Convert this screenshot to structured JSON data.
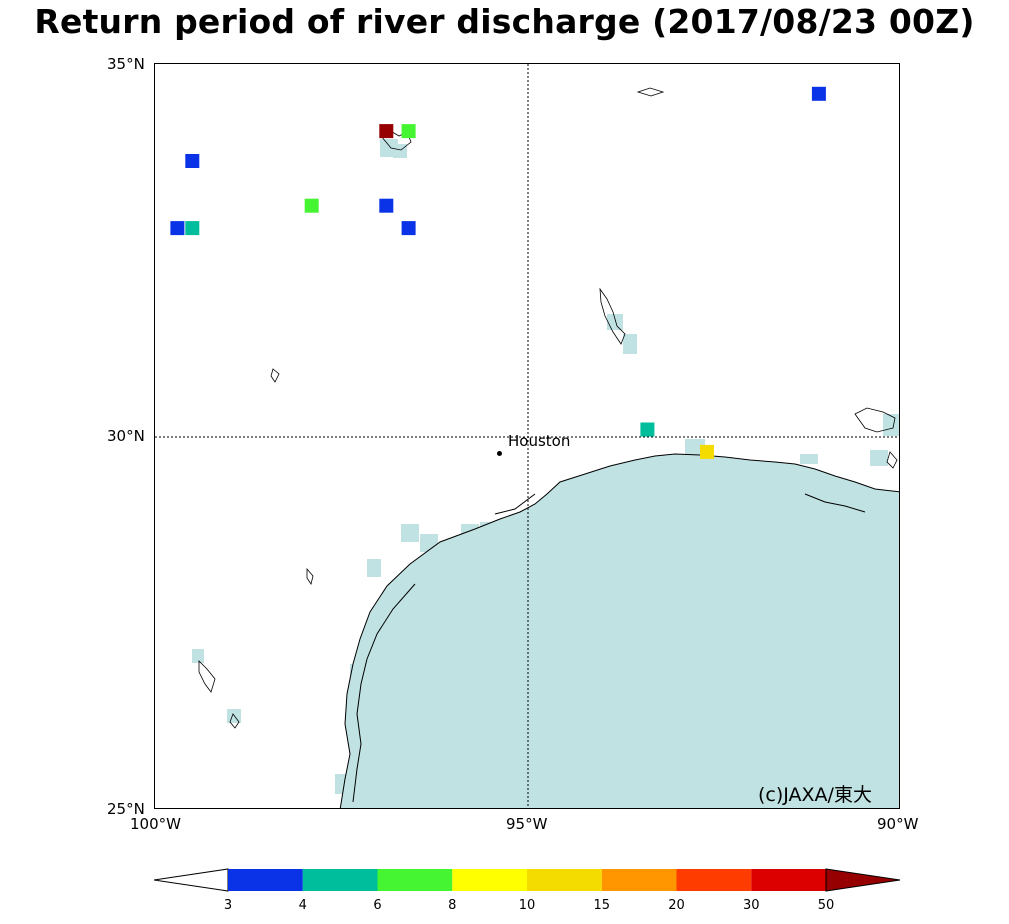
{
  "title": "Return period of river discharge  (2017/08/23 00Z)",
  "axes": {
    "lat_labels": [
      "35°N",
      "30°N",
      "25°N"
    ],
    "lon_labels": [
      "100°W",
      "95°W",
      "90°W"
    ]
  },
  "city": {
    "name": "Houston"
  },
  "copyright": "(c)JAXA/東大",
  "legend": {
    "boundaries": [
      "3",
      "4",
      "6",
      "8",
      "10",
      "15",
      "20",
      "30",
      "50"
    ],
    "colors": [
      "#0a32e6",
      "#00be9b",
      "#46f532",
      "#ffff00",
      "#f5dc00",
      "#ff9600",
      "#ff3c00",
      "#dc0000",
      "#960000"
    ]
  },
  "colors": {
    "sea": "#c1e2e3",
    "gridline": "#000000"
  },
  "chart_data": {
    "type": "heatmap",
    "title": "Return period of river discharge  (2017/08/23 00Z)",
    "xlim": [
      -100,
      -90
    ],
    "ylim": [
      25,
      35
    ],
    "xticks": [
      "100°W",
      "95°W",
      "90°W"
    ],
    "yticks": [
      "25°N",
      "30°N",
      "35°N"
    ],
    "cell_size_deg": 0.25,
    "cells": [
      {
        "lon": -99.5,
        "lat": 33.7,
        "class": "3-4"
      },
      {
        "lon": -99.7,
        "lat": 32.8,
        "class": "3-4"
      },
      {
        "lon": -99.5,
        "lat": 32.8,
        "class": "4-6"
      },
      {
        "lon": -97.9,
        "lat": 33.1,
        "class": "6-8"
      },
      {
        "lon": -96.9,
        "lat": 34.1,
        "class": ">50"
      },
      {
        "lon": -96.6,
        "lat": 34.1,
        "class": "6-8"
      },
      {
        "lon": -96.9,
        "lat": 33.1,
        "class": "3-4"
      },
      {
        "lon": -96.6,
        "lat": 32.8,
        "class": "3-4"
      },
      {
        "lon": -91.1,
        "lat": 34.6,
        "class": "3-4"
      },
      {
        "lon": -93.4,
        "lat": 30.1,
        "class": "4-6"
      },
      {
        "lon": -92.6,
        "lat": 29.8,
        "class": "10-15"
      }
    ]
  }
}
